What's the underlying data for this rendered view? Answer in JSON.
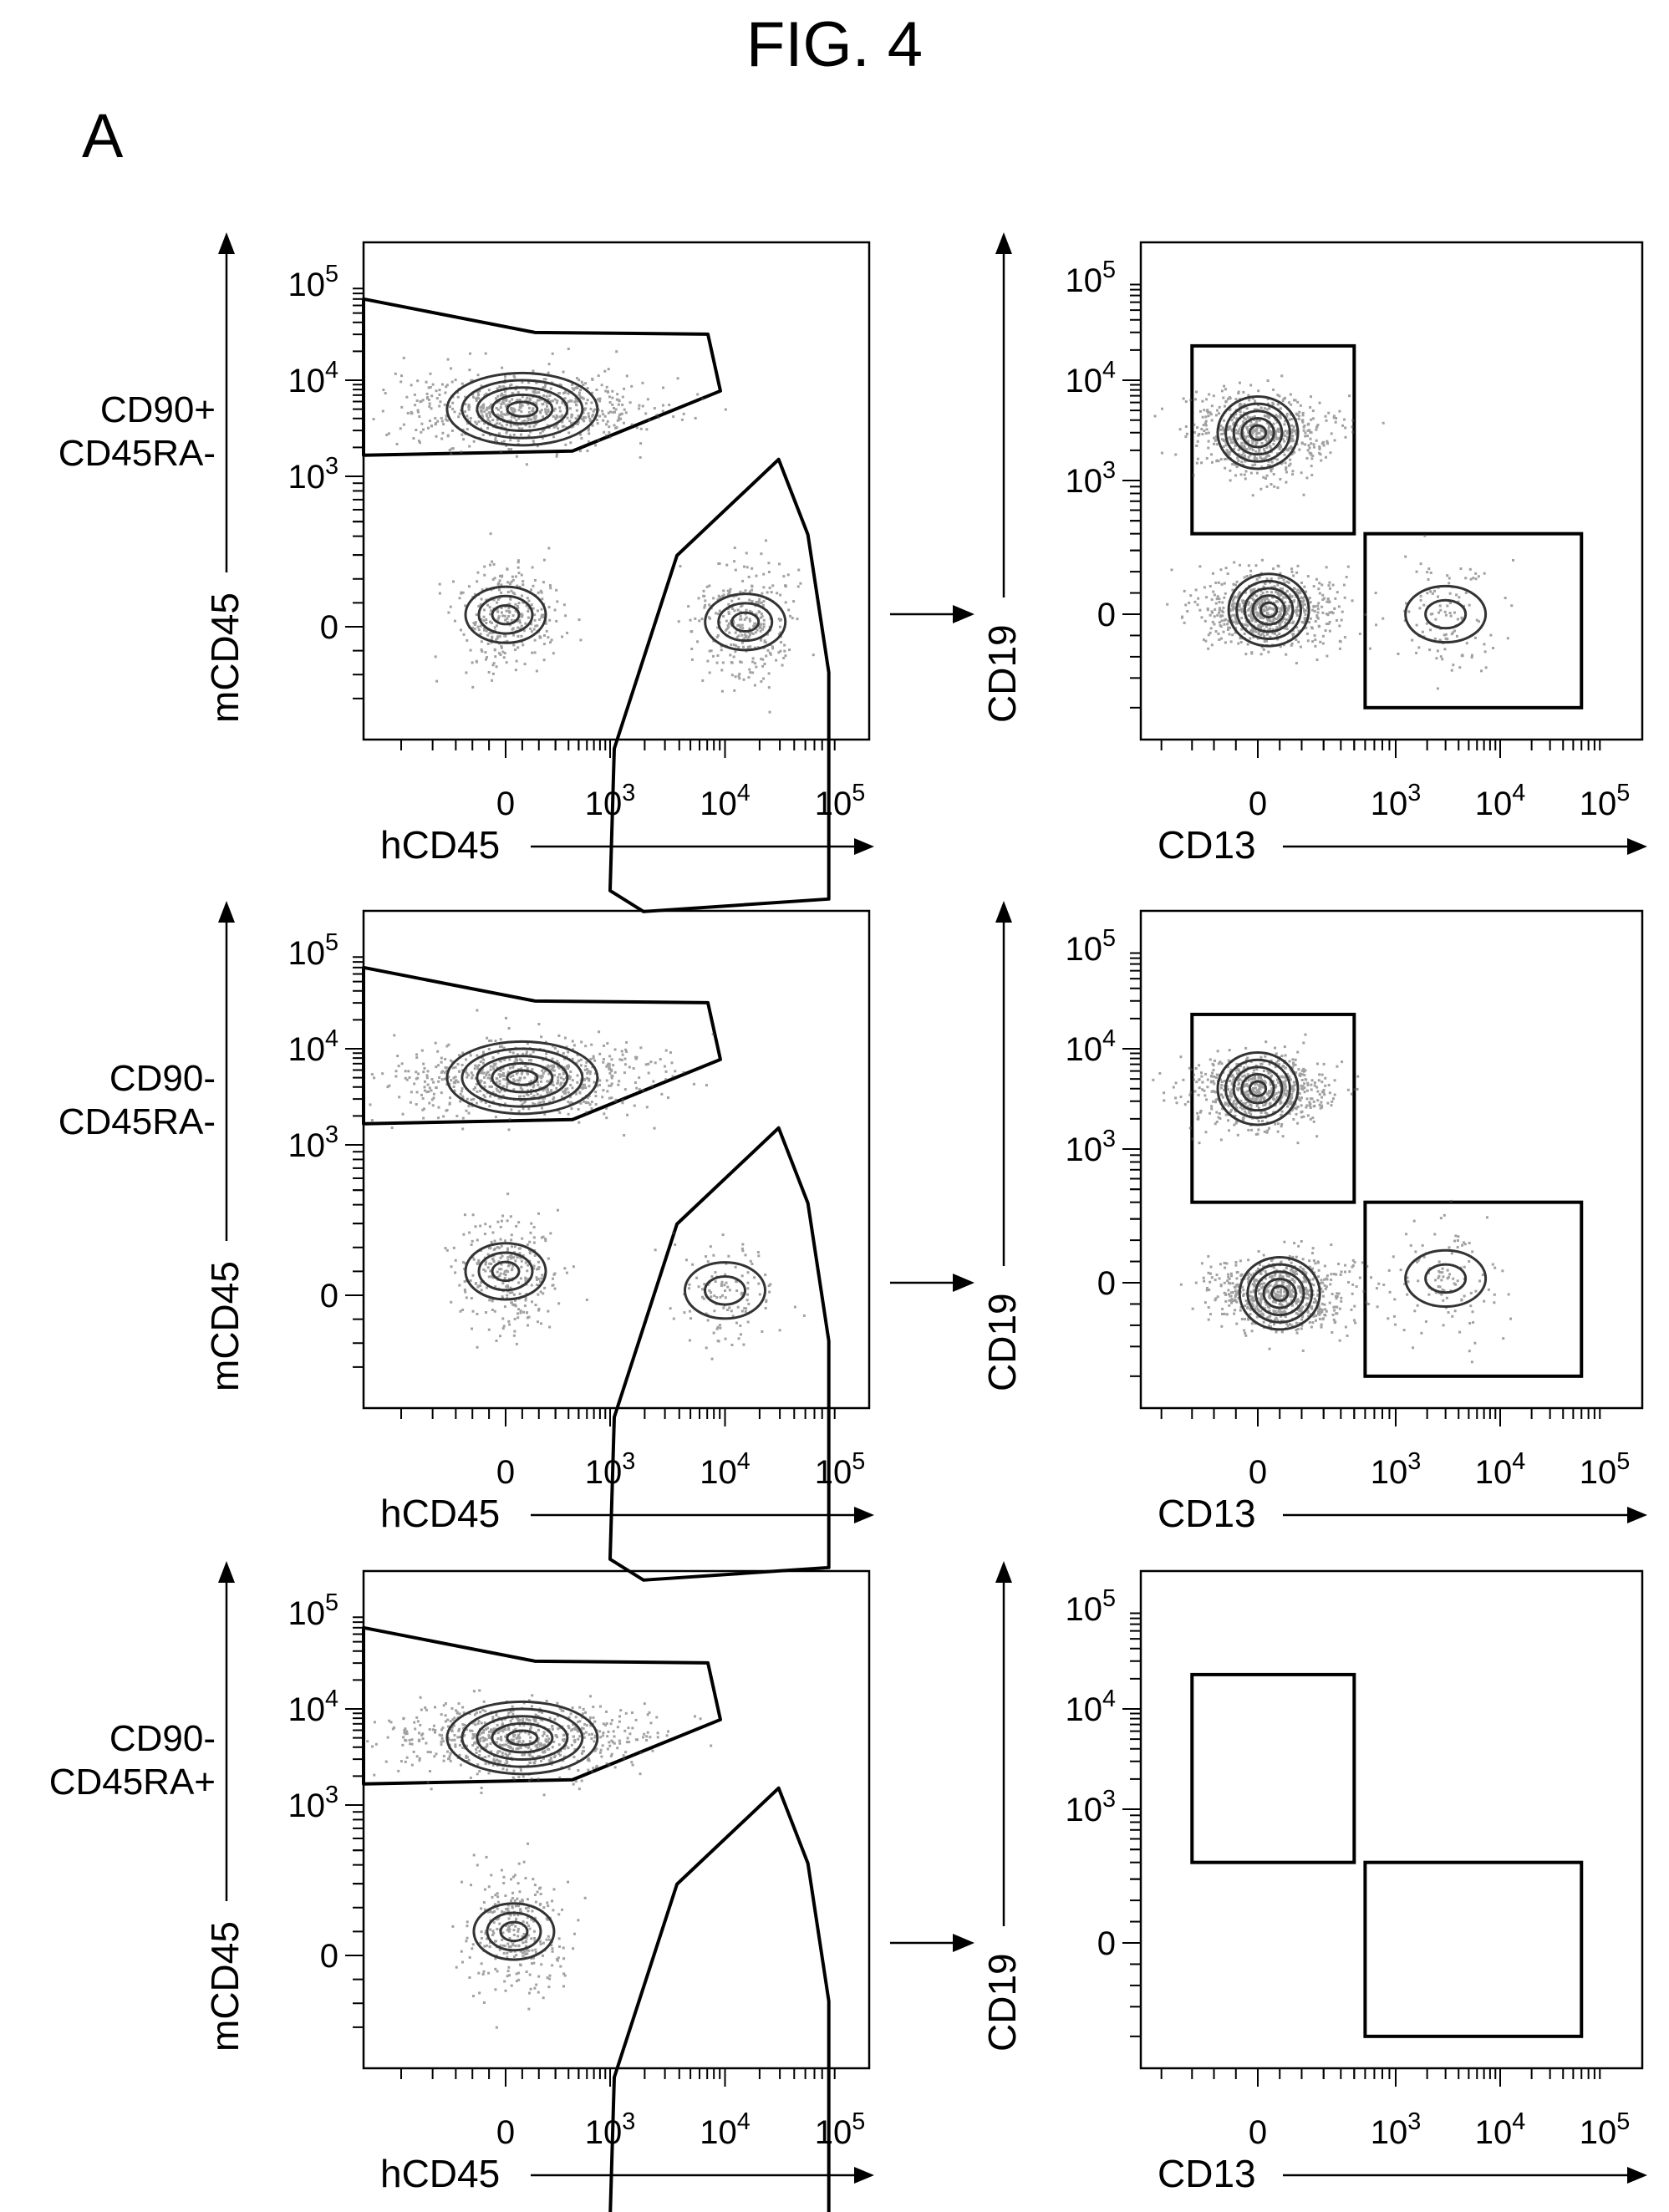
{
  "figure_title": "FIG. 4",
  "panel_label": "A",
  "colors": {
    "ink": "#000000",
    "events": "#555555",
    "contours": "#333333",
    "background": "#ffffff"
  },
  "tick_labels": {
    "log_axis": [
      "0",
      "10^3",
      "10^4",
      "10^5"
    ],
    "y_axis_left": [
      "10^5",
      "10^4",
      "10^3",
      "0"
    ],
    "y_axis_right": [
      "10^5",
      "10^4",
      "10^3",
      "0"
    ]
  },
  "chart_data": [
    {
      "type": "scatter",
      "plot": "density/contour",
      "row": 1,
      "column": 1,
      "row_label": [
        "CD90+",
        "CD45RA-"
      ],
      "xlabel": "hCD45",
      "ylabel": "mCD45",
      "x_scale": "biexponential",
      "y_scale": "biexponential",
      "xticks": [
        "0",
        "10^3",
        "10^4",
        "10^5"
      ],
      "yticks": [
        "0",
        "10^3",
        "10^4",
        "10^5"
      ],
      "populations": [
        {
          "name": "",
          "center": [
            100,
            5000
          ],
          "density": "high"
        },
        {
          "name": "",
          "center": [
            0,
            50
          ],
          "density": "medium"
        },
        {
          "name": "",
          "center": [
            15000,
            20
          ],
          "density": "medium"
        }
      ],
      "gates": [
        {
          "shape": "polygon",
          "population": "mCD45+",
          "x_range": [
            -800,
            6000
          ],
          "y_range": [
            1500,
            70000
          ]
        },
        {
          "shape": "polygon",
          "population": "hCD45+",
          "x_range": [
            1000,
            80000
          ],
          "y_range": [
            -500,
            1500
          ]
        }
      ],
      "arrow_to": "CD13 vs CD19"
    },
    {
      "type": "scatter",
      "plot": "contour",
      "row": 1,
      "column": 2,
      "xlabel": "CD13",
      "ylabel": "CD19",
      "x_scale": "biexponential",
      "y_scale": "biexponential",
      "xticks": [
        "0",
        "10^3",
        "10^4",
        "10^5"
      ],
      "yticks": [
        "0",
        "10^3",
        "10^4",
        "10^5"
      ],
      "populations": [
        {
          "name": "",
          "center": [
            0,
            3000
          ],
          "density": "high"
        },
        {
          "name": "",
          "center": [
            50,
            20
          ],
          "density": "high"
        },
        {
          "name": "",
          "center": [
            3000,
            0
          ],
          "density": "low"
        }
      ],
      "gates": [
        {
          "shape": "rectangle",
          "population": "CD19+",
          "x_range": [
            -300,
            500
          ],
          "y_range": [
            400,
            22000
          ]
        },
        {
          "shape": "rectangle",
          "population": "CD13+",
          "x_range": [
            600,
            60000
          ],
          "y_range": [
            -500,
            400
          ]
        }
      ]
    },
    {
      "type": "scatter",
      "plot": "density/contour",
      "row": 2,
      "column": 1,
      "row_label": [
        "CD90-",
        "CD45RA-"
      ],
      "xlabel": "hCD45",
      "ylabel": "mCD45",
      "x_scale": "biexponential",
      "y_scale": "biexponential",
      "xticks": [
        "0",
        "10^3",
        "10^4",
        "10^5"
      ],
      "yticks": [
        "0",
        "10^3",
        "10^4",
        "10^5"
      ],
      "populations": [
        {
          "name": "",
          "center": [
            100,
            5000
          ],
          "density": "high"
        },
        {
          "name": "",
          "center": [
            0,
            100
          ],
          "density": "medium"
        },
        {
          "name": "",
          "center": [
            10000,
            20
          ],
          "density": "low"
        }
      ],
      "gates": [
        {
          "shape": "polygon",
          "population": "mCD45+",
          "x_range": [
            -800,
            6000
          ],
          "y_range": [
            1500,
            70000
          ]
        },
        {
          "shape": "polygon",
          "population": "hCD45+",
          "x_range": [
            1000,
            80000
          ],
          "y_range": [
            -500,
            1500
          ]
        }
      ],
      "arrow_to": "CD13 vs CD19"
    },
    {
      "type": "scatter",
      "plot": "contour",
      "row": 2,
      "column": 2,
      "xlabel": "CD13",
      "ylabel": "CD19",
      "x_scale": "biexponential",
      "y_scale": "biexponential",
      "xticks": [
        "0",
        "10^3",
        "10^4",
        "10^5"
      ],
      "yticks": [
        "0",
        "10^3",
        "10^4",
        "10^5"
      ],
      "populations": [
        {
          "name": "",
          "center": [
            0,
            4000
          ],
          "density": "high"
        },
        {
          "name": "",
          "center": [
            100,
            -50
          ],
          "density": "high"
        },
        {
          "name": "",
          "center": [
            3000,
            20
          ],
          "density": "low"
        }
      ],
      "gates": [
        {
          "shape": "rectangle",
          "population": "CD19+",
          "x_range": [
            -300,
            500
          ],
          "y_range": [
            400,
            22000
          ]
        },
        {
          "shape": "rectangle",
          "population": "CD13+",
          "x_range": [
            600,
            60000
          ],
          "y_range": [
            -500,
            400
          ]
        }
      ]
    },
    {
      "type": "scatter",
      "plot": "density/contour",
      "row": 3,
      "column": 1,
      "row_label": [
        "CD90-",
        "CD45RA+"
      ],
      "xlabel": "hCD45",
      "ylabel": "mCD45",
      "x_scale": "biexponential",
      "y_scale": "biexponential",
      "xticks": [
        "0",
        "10^3",
        "10^4",
        "10^5"
      ],
      "yticks": [
        "0",
        "10^3",
        "10^4",
        "10^5"
      ],
      "populations": [
        {
          "name": "",
          "center": [
            100,
            5000
          ],
          "density": "high"
        },
        {
          "name": "",
          "center": [
            50,
            100
          ],
          "density": "medium"
        }
      ],
      "gates": [
        {
          "shape": "polygon",
          "population": "mCD45+",
          "x_range": [
            -800,
            6000
          ],
          "y_range": [
            1500,
            70000
          ]
        },
        {
          "shape": "polygon",
          "population": "hCD45+",
          "x_range": [
            1000,
            80000
          ],
          "y_range": [
            -500,
            1500
          ]
        }
      ],
      "arrow_to": "CD13 vs CD19"
    },
    {
      "type": "scatter",
      "plot": "contour",
      "row": 3,
      "column": 2,
      "xlabel": "CD13",
      "ylabel": "CD19",
      "x_scale": "biexponential",
      "y_scale": "biexponential",
      "xticks": [
        "0",
        "10^3",
        "10^4",
        "10^5"
      ],
      "yticks": [
        "0",
        "10^3",
        "10^4",
        "10^5"
      ],
      "populations": [],
      "gates": [
        {
          "shape": "rectangle",
          "population": "CD19+",
          "x_range": [
            -300,
            500
          ],
          "y_range": [
            400,
            22000
          ]
        },
        {
          "shape": "rectangle",
          "population": "CD13+",
          "x_range": [
            600,
            60000
          ],
          "y_range": [
            -500,
            400
          ]
        }
      ]
    }
  ]
}
